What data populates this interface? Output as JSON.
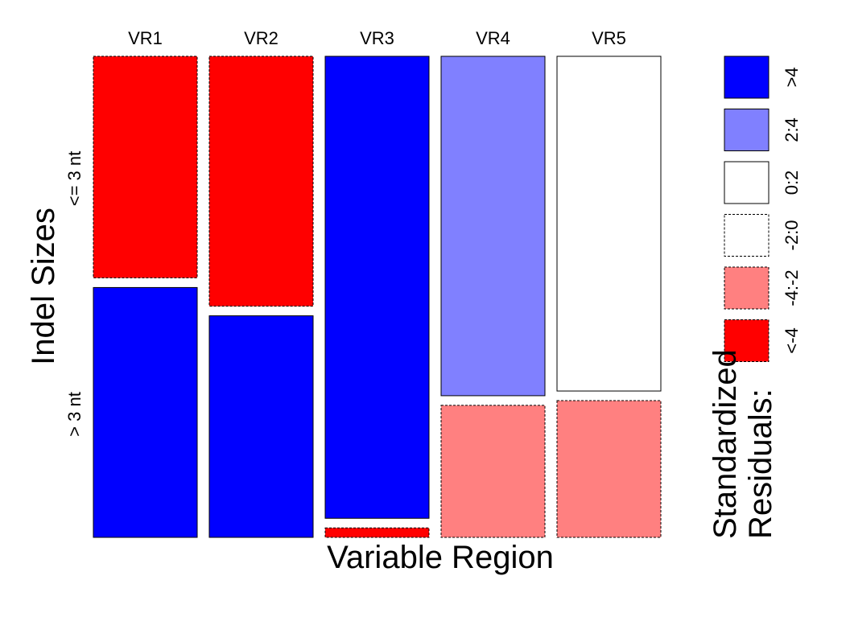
{
  "chart_data": {
    "type": "mosaic",
    "xlabel": "Variable Region",
    "ylabel": "Indel Sizes",
    "columns": [
      "VR1",
      "VR2",
      "VR3",
      "VR4",
      "VR5"
    ],
    "rows": [
      "<= 3 nt",
      "> 3 nt"
    ],
    "proportions": {
      "<= 3 nt": [
        0.47,
        0.53,
        0.98,
        0.72,
        0.71
      ],
      "> 3 nt": [
        0.53,
        0.47,
        0.02,
        0.28,
        0.29
      ]
    },
    "residual_class": {
      "<= 3 nt": [
        "<-4",
        "<-4",
        ">4",
        "2:4",
        "0:2"
      ],
      "> 3 nt": [
        ">4",
        ">4",
        "<-4",
        "-4:-2",
        "-4:-2"
      ]
    },
    "legend": {
      "title_line1": "Standardized",
      "title_line2": "Residuals:",
      "entries": [
        {
          "label": ">4",
          "fill": "#0000FF",
          "dashed": false
        },
        {
          "label": "2:4",
          "fill": "#8080FF",
          "dashed": false
        },
        {
          "label": "0:2",
          "fill": "#FFFFFF",
          "dashed": false
        },
        {
          "label": "-2:0",
          "fill": "#FFFFFF",
          "dashed": true
        },
        {
          "label": "-4:-2",
          "fill": "#FF8080",
          "dashed": true
        },
        {
          "label": "<-4",
          "fill": "#FF0000",
          "dashed": true
        }
      ]
    }
  }
}
